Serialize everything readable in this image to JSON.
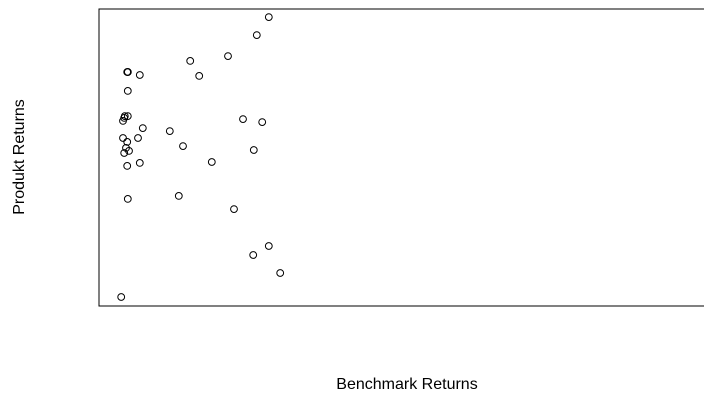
{
  "chart_data": {
    "type": "scatter",
    "title": "",
    "xlabel": "Benchmark Returns",
    "ylabel": "Produkt Returns",
    "xlim": [
      0,
      100
    ],
    "ylim": [
      0,
      100
    ],
    "grid": false,
    "points": [
      {
        "x": 28.3,
        "y": 97.3
      },
      {
        "x": 26.3,
        "y": 91.3
      },
      {
        "x": 21.5,
        "y": 84.3
      },
      {
        "x": 15.2,
        "y": 82.7
      },
      {
        "x": 16.7,
        "y": 77.7
      },
      {
        "x": 4.8,
        "y": 79.0
      },
      {
        "x": 4.8,
        "y": 79.0
      },
      {
        "x": 4.7,
        "y": 79.0
      },
      {
        "x": 6.8,
        "y": 78.0
      },
      {
        "x": 4.8,
        "y": 72.7
      },
      {
        "x": 4.3,
        "y": 64.3
      },
      {
        "x": 4.8,
        "y": 64.3
      },
      {
        "x": 4.2,
        "y": 63.7
      },
      {
        "x": 4.0,
        "y": 62.7
      },
      {
        "x": 24.0,
        "y": 63.3
      },
      {
        "x": 27.2,
        "y": 62.3
      },
      {
        "x": 7.3,
        "y": 60.3
      },
      {
        "x": 11.8,
        "y": 59.3
      },
      {
        "x": 4.0,
        "y": 57.0
      },
      {
        "x": 6.5,
        "y": 57.0
      },
      {
        "x": 4.7,
        "y": 55.7
      },
      {
        "x": 14.0,
        "y": 54.3
      },
      {
        "x": 4.5,
        "y": 53.7
      },
      {
        "x": 5.0,
        "y": 52.7
      },
      {
        "x": 4.2,
        "y": 52.0
      },
      {
        "x": 25.8,
        "y": 53.0
      },
      {
        "x": 6.8,
        "y": 48.7
      },
      {
        "x": 18.8,
        "y": 49.0
      },
      {
        "x": 4.7,
        "y": 47.7
      },
      {
        "x": 4.8,
        "y": 36.7
      },
      {
        "x": 13.3,
        "y": 37.7
      },
      {
        "x": 22.5,
        "y": 33.3
      },
      {
        "x": 28.3,
        "y": 21.0
      },
      {
        "x": 25.7,
        "y": 18.0
      },
      {
        "x": 30.2,
        "y": 12.0
      },
      {
        "x": 3.7,
        "y": 4.0
      }
    ]
  }
}
